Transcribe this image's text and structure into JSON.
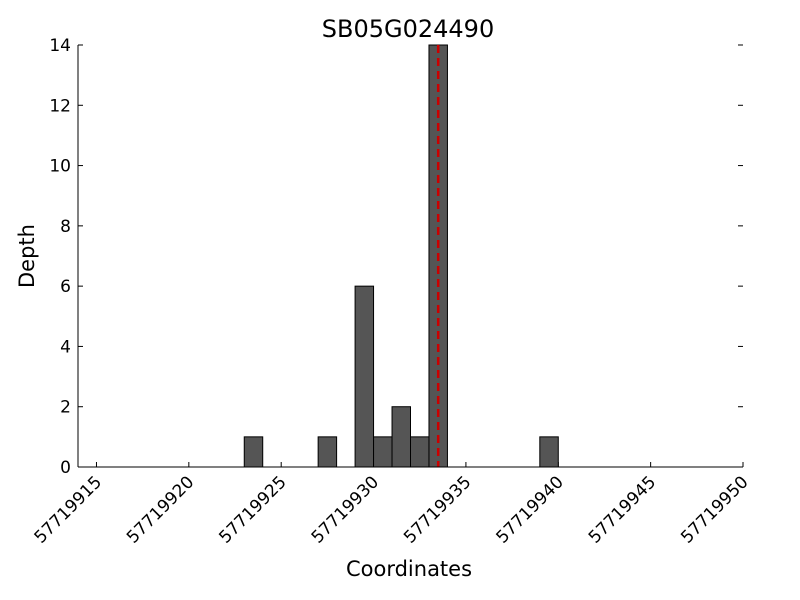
{
  "chart_data": {
    "type": "bar",
    "title": "SB05G024490",
    "xlabel": "Coordinates",
    "ylabel": "Depth",
    "xlim": [
      57719914,
      57719950
    ],
    "ylim": [
      0,
      14
    ],
    "x_ticks": [
      57719915,
      57719920,
      57719925,
      57719930,
      57719935,
      57719940,
      57719945,
      57719950
    ],
    "y_ticks": [
      0,
      2,
      4,
      6,
      8,
      10,
      12,
      14
    ],
    "bins": [
      {
        "start": 57719923,
        "end": 57719924,
        "value": 1
      },
      {
        "start": 57719927,
        "end": 57719928,
        "value": 1
      },
      {
        "start": 57719929,
        "end": 57719930,
        "value": 6
      },
      {
        "start": 57719930,
        "end": 57719931,
        "value": 1
      },
      {
        "start": 57719931,
        "end": 57719932,
        "value": 2
      },
      {
        "start": 57719932,
        "end": 57719933,
        "value": 1
      },
      {
        "start": 57719933,
        "end": 57719934,
        "value": 14
      },
      {
        "start": 57719939,
        "end": 57719940,
        "value": 1
      }
    ],
    "reference_line": {
      "x": 57719933.5,
      "style": "dashed"
    },
    "grid": false,
    "colors": {
      "bar_fill": "#555555",
      "bar_edge": "#000000",
      "reference_line": "#cc0000"
    }
  }
}
